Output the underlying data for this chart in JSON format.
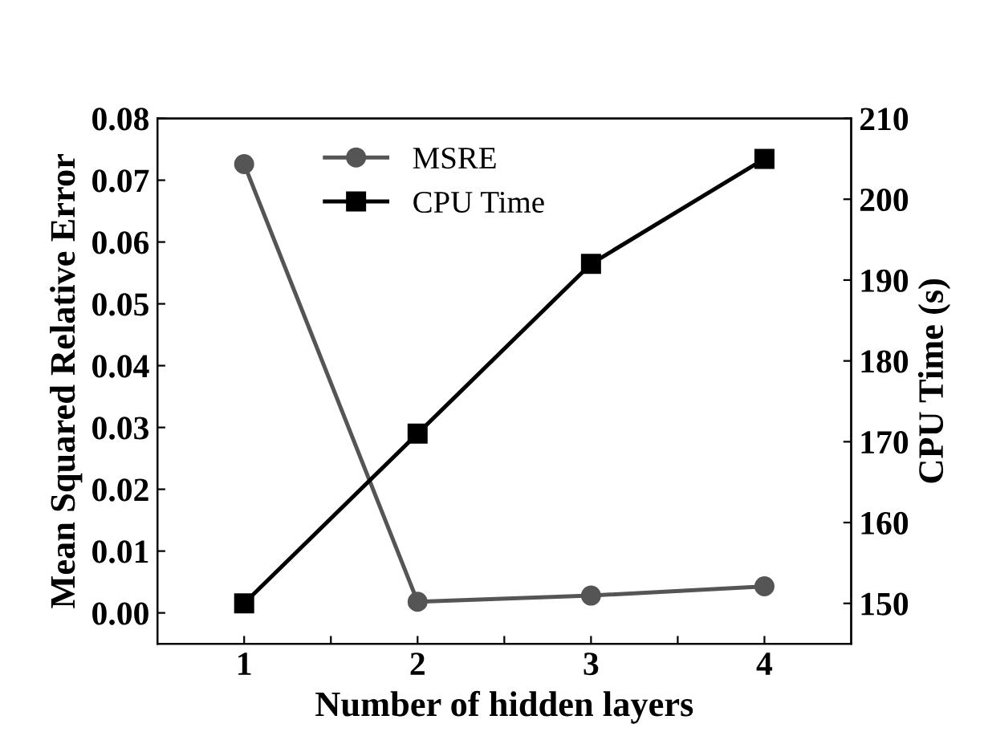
{
  "chart_data": {
    "type": "line",
    "xlabel": "Number of hidden layers",
    "ylabel": "Mean Squared Relative Error",
    "y2label": "CPU Time (s)",
    "x": [
      1,
      2,
      3,
      4
    ],
    "xlim": [
      0.5,
      4.5
    ],
    "xticks": [
      1,
      {
        "value": 1.5,
        "label": null
      },
      2,
      {
        "value": 2.5,
        "label": null
      },
      3,
      {
        "value": 3.5,
        "label": null
      },
      4
    ],
    "ylim": [
      -0.005,
      0.08
    ],
    "yticks": [
      {
        "value": 0.0,
        "label": "0.00"
      },
      {
        "value": 0.01,
        "label": "0.01"
      },
      {
        "value": 0.02,
        "label": "0.02"
      },
      {
        "value": 0.03,
        "label": "0.03"
      },
      {
        "value": 0.04,
        "label": "0.04"
      },
      {
        "value": 0.05,
        "label": "0.05"
      },
      {
        "value": 0.06,
        "label": "0.06"
      },
      {
        "value": 0.07,
        "label": "0.07"
      },
      {
        "value": 0.08,
        "label": "0.08"
      }
    ],
    "y2lim": [
      145,
      210
    ],
    "y2ticks": [
      150,
      160,
      170,
      180,
      190,
      200,
      210
    ],
    "series": [
      {
        "name": "MSRE",
        "color": "#555555",
        "marker": "circle",
        "values": [
          0.0726,
          0.0018,
          0.0028,
          0.0043
        ]
      },
      {
        "name": "CPU Time",
        "color": "#000000",
        "marker": "square",
        "axis": "y2",
        "values": [
          150,
          171,
          192,
          205
        ]
      }
    ],
    "legend": "top",
    "grid": false,
    "line_style": "solid"
  }
}
